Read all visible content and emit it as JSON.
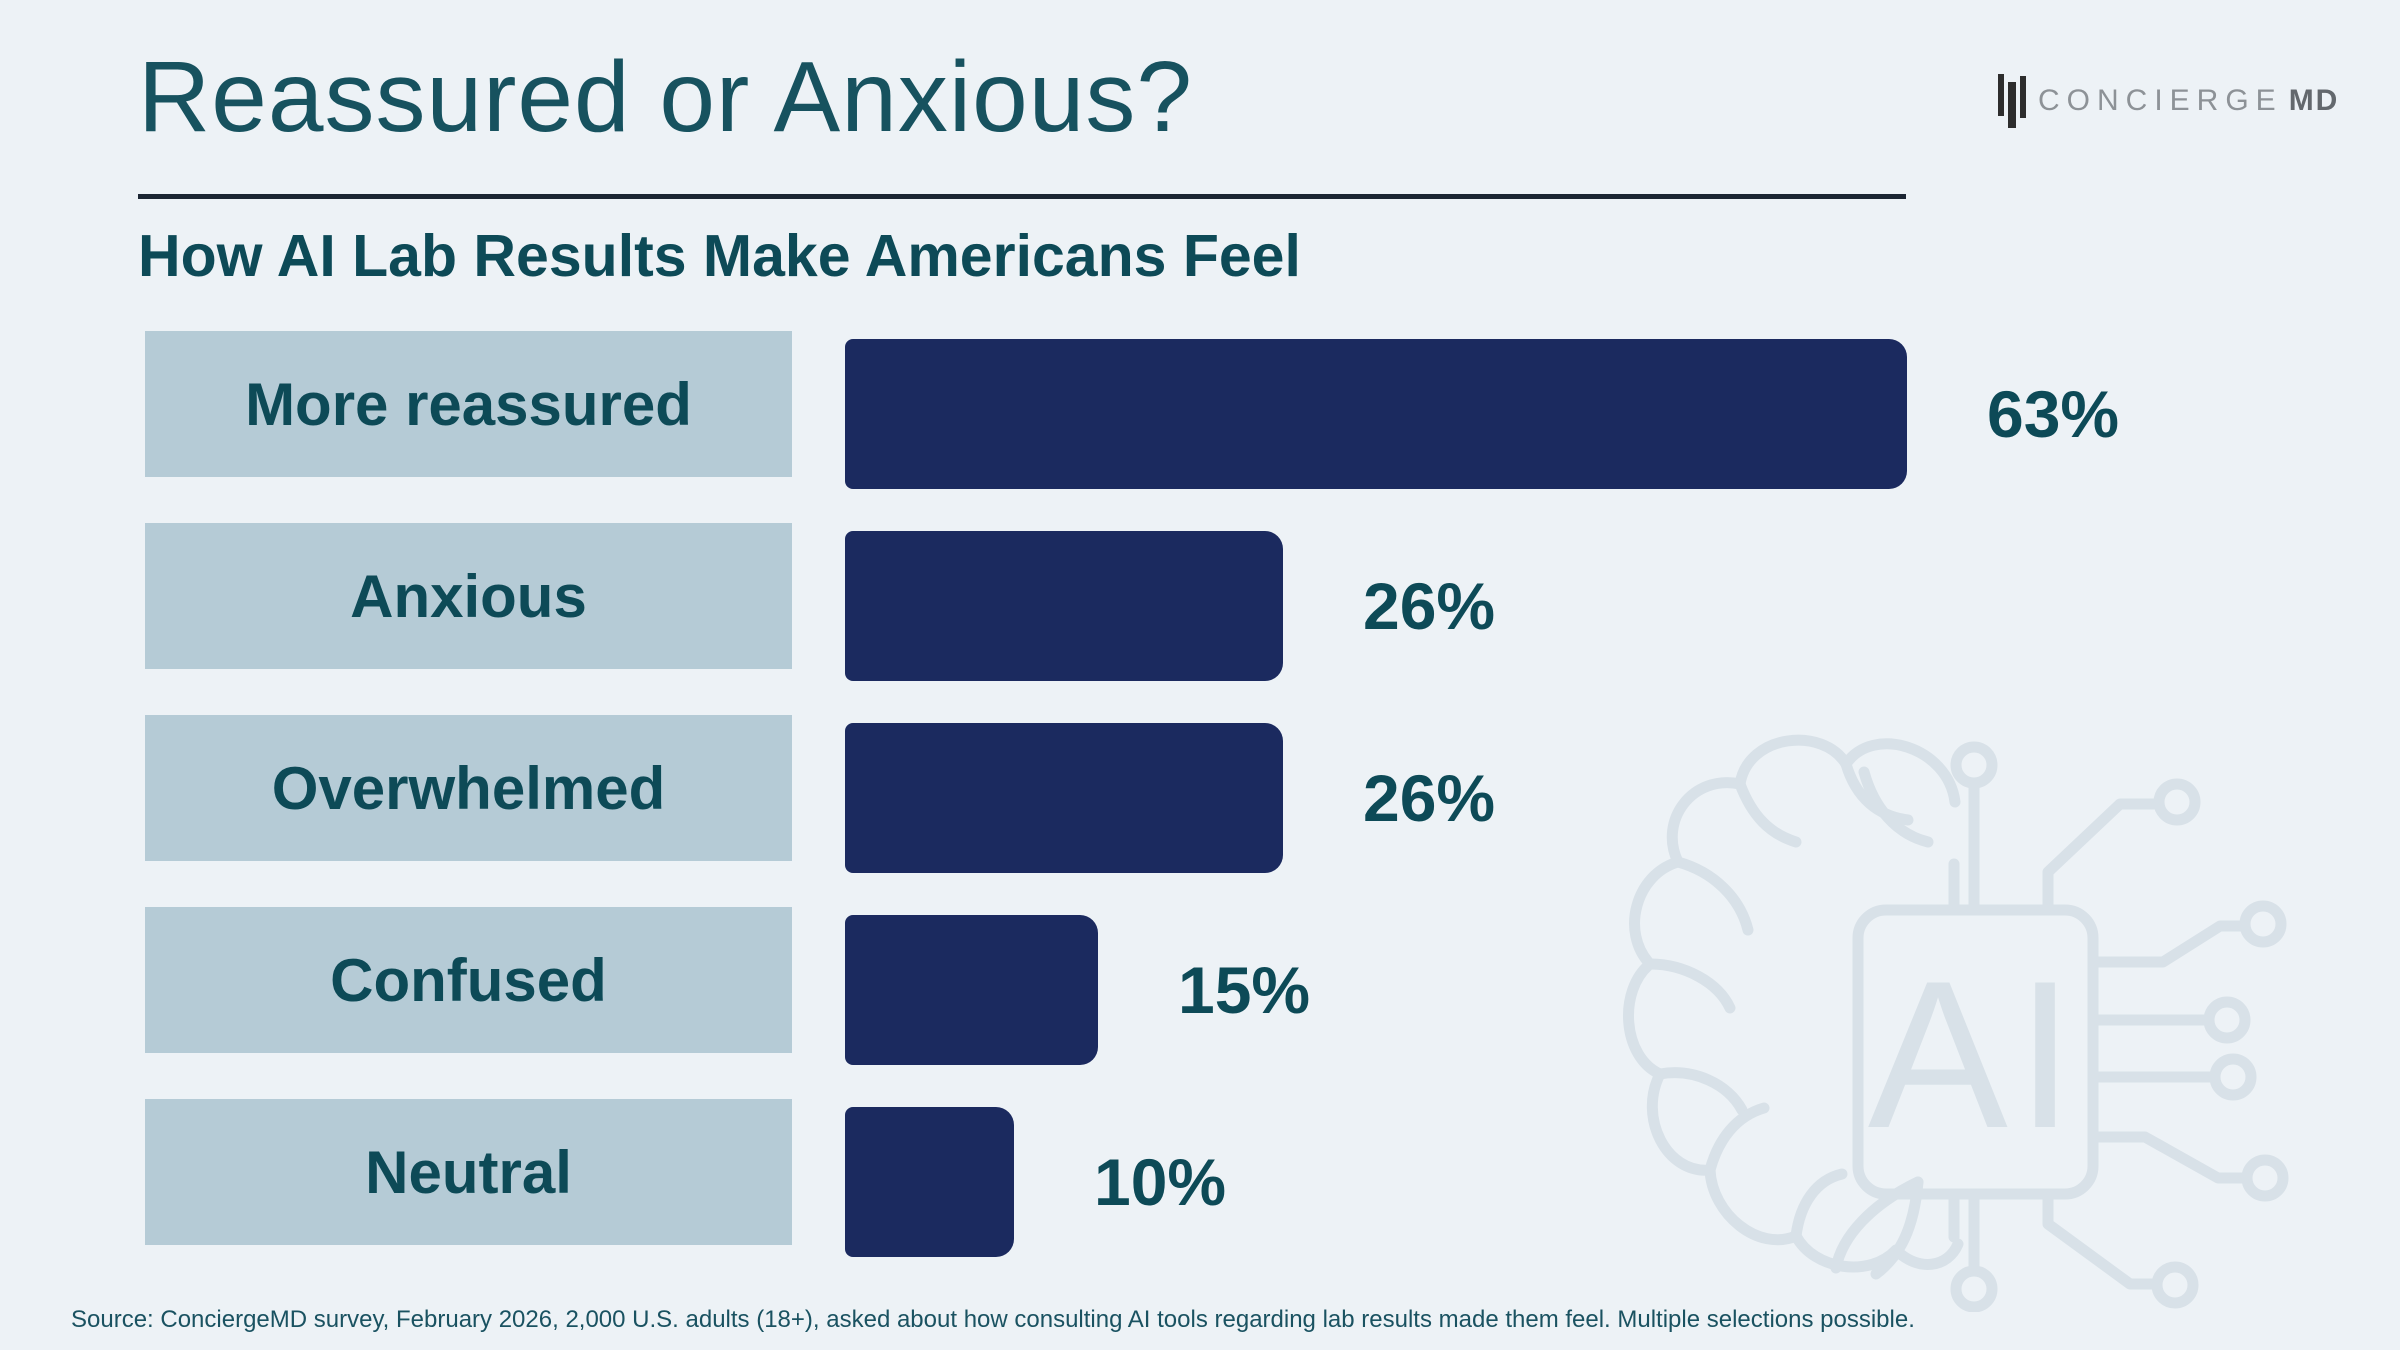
{
  "header": {
    "title": "Reassured or Anxious?",
    "subtitle": "How AI Lab Results Make Americans Feel"
  },
  "brand": {
    "name_primary": "CONCIERGE",
    "name_secondary": "MD",
    "icon": "three-vertical-bars-logo-mark"
  },
  "chart_data": {
    "type": "bar",
    "orientation": "horizontal",
    "title": "How AI Lab Results Make Americans Feel",
    "categories": [
      "More reassured",
      "Anxious",
      "Overwhelmed",
      "Confused",
      "Neutral"
    ],
    "values": [
      63,
      26,
      26,
      15,
      10
    ],
    "value_labels": [
      "63%",
      "26%",
      "26%",
      "15%",
      "10%"
    ],
    "unit": "%",
    "xlim": [
      0,
      63
    ],
    "grid": false,
    "legend": null,
    "bar_color": "#1b2a5f",
    "category_box_color": "#b5cbd6",
    "text_color": "#0d4a57"
  },
  "decor": {
    "ai_chip_label": "AI",
    "watermark": "brain-with-ai-chip-circuit",
    "watermark_color": "#d8e1e8"
  },
  "footer": {
    "source": "Source: ConciergeMD survey, February 2026, 2,000 U.S. adults (18+), asked about how consulting AI tools regarding lab results made them feel. Multiple selections possible."
  },
  "colors": {
    "background": "#edf2f6",
    "title": "#17525f",
    "divider": "#1b2633",
    "accent_navy": "#1b2a5f",
    "accent_teal": "#0d4a57",
    "label_box": "#b5cbd6"
  }
}
